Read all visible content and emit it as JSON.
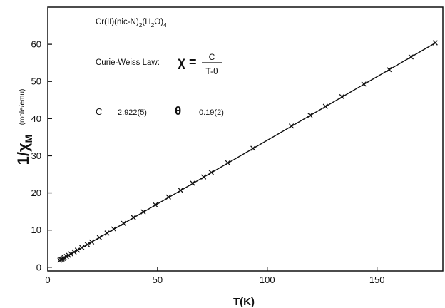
{
  "chart_data": {
    "type": "scatter",
    "title": "",
    "xlabel": "T(K)",
    "ylabel": "1/χ",
    "ylabel_subscript": "M",
    "ylabel_unit": "(mole/emu)",
    "xlim": [
      0,
      180
    ],
    "ylim": [
      -1,
      70
    ],
    "x_ticks": [
      "0",
      "50",
      "100",
      "150"
    ],
    "y_ticks": [
      "0",
      "10",
      "20",
      "30",
      "40",
      "50",
      "60"
    ],
    "grid": false,
    "legend": "none",
    "series": [
      {
        "marker": "x",
        "fit_line": true,
        "points": [
          [
            5.5,
            1.9
          ],
          [
            6.0,
            2.1
          ],
          [
            6.5,
            2.2
          ],
          [
            7.0,
            2.4
          ],
          [
            7.5,
            2.6
          ],
          [
            8.5,
            2.9
          ],
          [
            9.5,
            3.2
          ],
          [
            10.5,
            3.6
          ],
          [
            12.0,
            4.1
          ],
          [
            13.5,
            4.6
          ],
          [
            15.5,
            5.3
          ],
          [
            18.0,
            6.1
          ],
          [
            20.0,
            6.8
          ],
          [
            23.5,
            8.0
          ],
          [
            27.0,
            9.2
          ],
          [
            30.0,
            10.3
          ],
          [
            34.5,
            11.8
          ],
          [
            39.0,
            13.4
          ],
          [
            43.5,
            14.9
          ],
          [
            49.0,
            16.8
          ],
          [
            55.0,
            18.9
          ],
          [
            60.5,
            20.7
          ],
          [
            66.0,
            22.6
          ],
          [
            71.0,
            24.3
          ],
          [
            74.5,
            25.5
          ],
          [
            82.0,
            28.1
          ],
          [
            93.5,
            32.0
          ],
          [
            111.0,
            38.0
          ],
          [
            119.5,
            40.9
          ],
          [
            126.5,
            43.3
          ],
          [
            134.0,
            45.9
          ],
          [
            144.0,
            49.3
          ],
          [
            155.5,
            53.2
          ],
          [
            165.5,
            56.6
          ],
          [
            176.5,
            60.4
          ]
        ],
        "line": [
          [
            5.5,
            1.82
          ],
          [
            176.5,
            60.34
          ]
        ]
      }
    ],
    "annotations": {
      "compound": {
        "base": "Cr(II)(nic-N)",
        "sub1": "2",
        "mid": "(H",
        "sub2": "2",
        "tail": "O)",
        "sub3": "4"
      },
      "law_label": "Curie-Weiss Law:",
      "law_chi": "χ",
      "law_eq": "=",
      "law_num": "C",
      "law_den": "T-θ",
      "c_label": "C =",
      "c_value": "2.922(5)",
      "theta_symbol": "θ",
      "theta_eq": "=",
      "theta_value": "0.19(2)"
    }
  }
}
